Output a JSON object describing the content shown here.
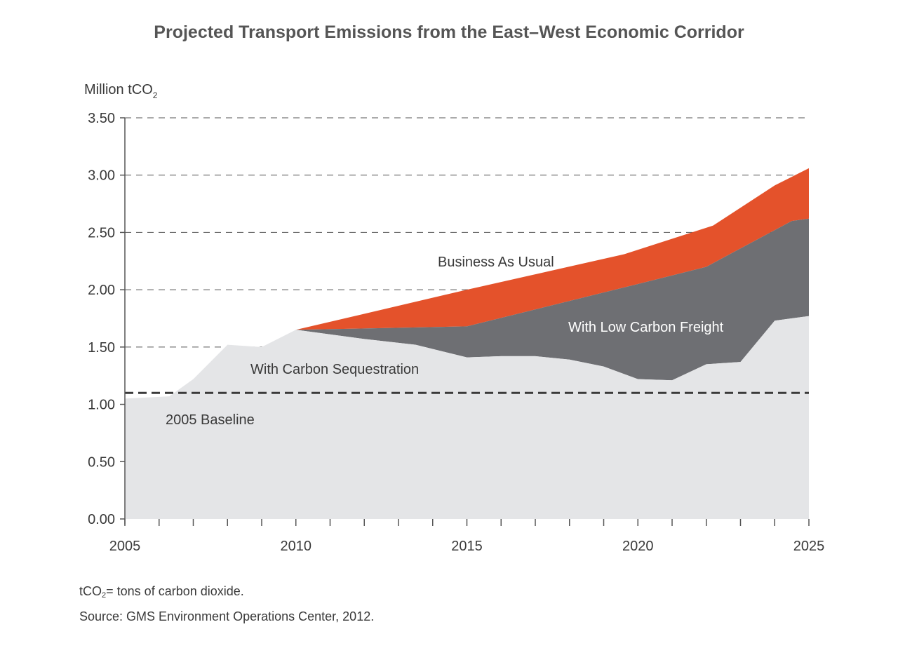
{
  "title": "Projected Transport Emissions from the East–West Economic Corridor",
  "colors": {
    "business_as_usual": "#e4522b",
    "low_carbon_freight": "#6e6f73",
    "carbon_sequestration": "#e4e5e7",
    "baseline": "#3a3a3a",
    "grid": "#555555"
  },
  "notes": {
    "unit_prefix": "tCO",
    "unit_sub": "2",
    "unit_text": "= tons of carbon dioxide.",
    "source": "Source: GMS Environment Operations Center, 2012."
  },
  "chart_data": {
    "type": "area",
    "title": "Projected Transport Emissions from the East–West Economic Corridor",
    "ylabel": "Million tCO2",
    "ylabel_prefix": "Million tCO",
    "ylabel_sub": "2",
    "xlabel": "",
    "xlim": [
      2005,
      2025
    ],
    "ylim": [
      0,
      3.5
    ],
    "x_ticks": [
      2005,
      2010,
      2015,
      2020,
      2025
    ],
    "y_ticks": [
      "0.00",
      "0.50",
      "1.00",
      "1.50",
      "2.00",
      "2.50",
      "3.00",
      "3.50"
    ],
    "grid": "horizontal dashed",
    "series": [
      {
        "name": "Business As Usual",
        "x": [
          2010,
          2015,
          2019.6,
          2022.2,
          2024,
          2025
        ],
        "values": [
          1.65,
          2.0,
          2.31,
          2.56,
          2.91,
          3.06
        ]
      },
      {
        "name": "With Low Carbon Freight",
        "x": [
          2010,
          2013.3,
          2015,
          2020,
          2022,
          2023,
          2024.5,
          2025
        ],
        "values": [
          1.65,
          1.67,
          1.68,
          2.05,
          2.2,
          2.36,
          2.6,
          2.62
        ]
      },
      {
        "name": "With Carbon Sequestration",
        "x": [
          2005,
          2006.3,
          2007,
          2008,
          2009,
          2010,
          2012,
          2013.5,
          2015,
          2016,
          2017,
          2018,
          2019,
          2020,
          2021,
          2022,
          2023,
          2024,
          2025
        ],
        "values": [
          1.05,
          1.07,
          1.22,
          1.52,
          1.5,
          1.65,
          1.57,
          1.52,
          1.41,
          1.42,
          1.42,
          1.39,
          1.33,
          1.22,
          1.21,
          1.35,
          1.37,
          1.73,
          1.77
        ]
      }
    ],
    "baseline": {
      "name": "2005 Baseline",
      "value": 1.1
    }
  }
}
